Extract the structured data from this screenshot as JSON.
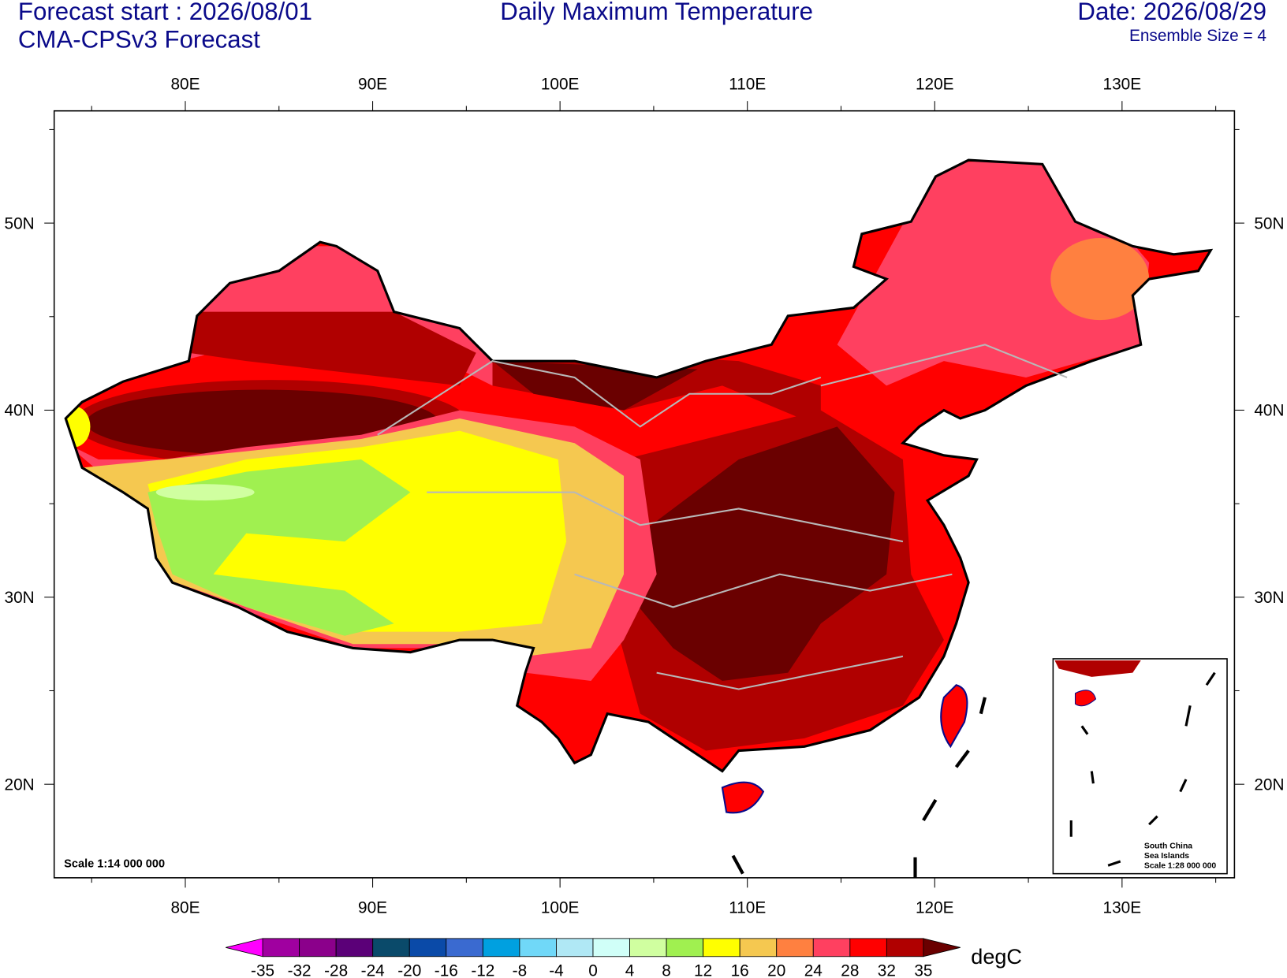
{
  "header": {
    "forecast_start": "Forecast start : 2026/08/01",
    "model": "CMA-CPSv3 Forecast",
    "title": "Daily Maximum Temperature",
    "date": "Date: 2026/08/29",
    "ensemble": "Ensemble Size = 4"
  },
  "map": {
    "xlim": [
      73,
      136
    ],
    "ylim": [
      15,
      56
    ],
    "xticks": [
      {
        "value": 80,
        "label": "80E"
      },
      {
        "value": 90,
        "label": "90E"
      },
      {
        "value": 100,
        "label": "100E"
      },
      {
        "value": 110,
        "label": "110E"
      },
      {
        "value": 120,
        "label": "120E"
      },
      {
        "value": 130,
        "label": "130E"
      }
    ],
    "xminorticks": [
      75,
      85,
      95,
      105,
      115,
      125,
      135
    ],
    "yticks": [
      {
        "value": 20,
        "label": "20N"
      },
      {
        "value": 30,
        "label": "30N"
      },
      {
        "value": 40,
        "label": "40N"
      },
      {
        "value": 50,
        "label": "50N"
      }
    ],
    "yminorticks": [
      25,
      35,
      45,
      55
    ],
    "scale": "Scale 1:14 000 000",
    "inset": [
      "South China",
      "Sea Islands",
      "Scale 1:28 000 000"
    ]
  },
  "colorbar": {
    "unit": "degC",
    "levels": [
      -35,
      -32,
      -28,
      -24,
      -20,
      -16,
      -12,
      -8,
      -4,
      0,
      4,
      8,
      12,
      16,
      20,
      24,
      28,
      32,
      35
    ],
    "colors": [
      "#ff00ff",
      "#a000a0",
      "#8b008b",
      "#5b0078",
      "#0a4a6a",
      "#0a4aa8",
      "#3a6ad0",
      "#00a0e0",
      "#70d8f8",
      "#b0e8f5",
      "#d0fff8",
      "#d0ffa0",
      "#a0f050",
      "#ffff00",
      "#f5c850",
      "#ff8040",
      "#ff4060",
      "#ff0000",
      "#b00000",
      "#6a0000"
    ]
  }
}
